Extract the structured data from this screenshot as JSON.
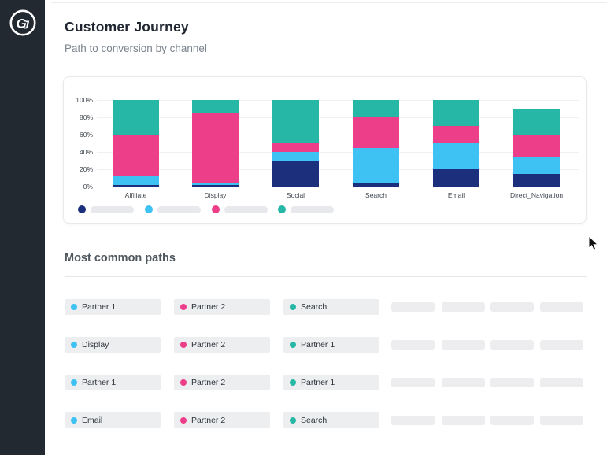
{
  "header": {
    "title": "Customer Journey",
    "subtitle": "Path to conversion by channel"
  },
  "logo": {
    "monogram": "GJ"
  },
  "chart_data": {
    "type": "bar",
    "variant": "stacked-100-percent",
    "title": "",
    "xlabel": "",
    "ylabel": "",
    "categories": [
      "Affiliate",
      "Display",
      "Social",
      "Search",
      "Email",
      "Direct_Navigation"
    ],
    "series": [
      {
        "name": "segment-navy",
        "color": "#1B2F7D",
        "values": [
          2,
          2,
          30,
          5,
          20,
          15
        ]
      },
      {
        "name": "segment-lightblue",
        "color": "#3EC1F3",
        "values": [
          10,
          3,
          10,
          40,
          30,
          20
        ]
      },
      {
        "name": "segment-pink",
        "color": "#ED3E8A",
        "values": [
          48,
          80,
          10,
          35,
          20,
          25
        ]
      },
      {
        "name": "segment-teal",
        "color": "#26B7A6",
        "values": [
          40,
          15,
          50,
          20,
          30,
          30
        ]
      }
    ],
    "stack_totals": [
      100,
      100,
      100,
      100,
      100,
      90
    ],
    "y_ticks": [
      "0%",
      "20%",
      "40%",
      "60%",
      "80%",
      "100%"
    ],
    "ylim": [
      0,
      100
    ],
    "grid": true,
    "legend": {
      "position": "bottom-left",
      "labels_redacted": true,
      "entries": [
        {
          "color": "#1B2F7D"
        },
        {
          "color": "#3EC1F3"
        },
        {
          "color": "#ED3E8A"
        },
        {
          "color": "#26B7A6"
        }
      ]
    }
  },
  "paths": {
    "title": "Most common paths",
    "rows": [
      {
        "steps": [
          {
            "label": "Partner 1",
            "dot_color": "#3EC1F3"
          },
          {
            "label": "Partner 2",
            "dot_color": "#ED3E8A"
          },
          {
            "label": "Search",
            "dot_color": "#26B7A6"
          }
        ],
        "placeholder_count": 4
      },
      {
        "steps": [
          {
            "label": "Display",
            "dot_color": "#3EC1F3"
          },
          {
            "label": "Partner 2",
            "dot_color": "#ED3E8A"
          },
          {
            "label": "Partner 1",
            "dot_color": "#26B7A6"
          }
        ],
        "placeholder_count": 4
      },
      {
        "steps": [
          {
            "label": "Partner 1",
            "dot_color": "#3EC1F3"
          },
          {
            "label": "Partner 2",
            "dot_color": "#ED3E8A"
          },
          {
            "label": "Partner 1",
            "dot_color": "#26B7A6"
          }
        ],
        "placeholder_count": 4
      },
      {
        "steps": [
          {
            "label": "Email",
            "dot_color": "#3EC1F3"
          },
          {
            "label": "Partner 2",
            "dot_color": "#ED3E8A"
          },
          {
            "label": "Search",
            "dot_color": "#26B7A6"
          }
        ],
        "placeholder_count": 4
      }
    ]
  },
  "colors": {
    "sidebar_bg": "#232931",
    "navy": "#1B2F7D",
    "lightblue": "#3EC1F3",
    "pink": "#ED3E8A",
    "teal": "#26B7A6",
    "pill_bg": "#ECEEF0",
    "placeholder_bg": "#EDEDEF"
  }
}
